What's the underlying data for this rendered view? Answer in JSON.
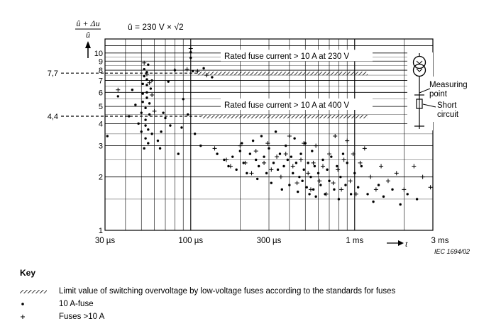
{
  "chart_data": {
    "type": "scatter",
    "x_scale": "log",
    "y_scale": "log",
    "xlim_us": [
      30,
      3000
    ],
    "ylim": [
      1,
      12
    ],
    "grid": true,
    "ylabel_num": "û + Δu",
    "ylabel_den": "û",
    "x_arrow_label": "t",
    "formula": "û = 230 V × √2",
    "x_tick_labels": [
      {
        "x_us": 30,
        "label": "30 µs"
      },
      {
        "x_us": 100,
        "label": "100 µs"
      },
      {
        "x_us": 300,
        "label": "300 µs"
      },
      {
        "x_us": 1000,
        "label": "1 ms"
      },
      {
        "x_us": 3000,
        "label": "3 ms"
      }
    ],
    "y_tick_labels": [
      {
        "y": 1,
        "label": "1"
      },
      {
        "y": 2,
        "label": "2"
      },
      {
        "y": 3,
        "label": "3"
      },
      {
        "y": 4,
        "label": "4"
      },
      {
        "y": 5,
        "label": "5"
      },
      {
        "y": 6,
        "label": "6"
      },
      {
        "y": 7,
        "label": "7"
      },
      {
        "y": 8,
        "label": "8"
      },
      {
        "y": 9,
        "label": "9"
      },
      {
        "y": 10,
        "label": "10"
      }
    ],
    "limit_lines": [
      {
        "y": 7.7,
        "label": "7,7",
        "x_start_us": 110,
        "x_end_us": 1200,
        "text": "Rated fuse current > 10 A at 230 V"
      },
      {
        "y": 4.4,
        "label": "4,4",
        "x_start_us": 115,
        "x_end_us": 1200,
        "text": "Rated fuse current > 10 A at 400 V"
      }
    ],
    "series": [
      {
        "name": "10 A-fuse",
        "marker": "dot",
        "points": [
          [
            31,
            3.4
          ],
          [
            36,
            5.7
          ],
          [
            42,
            4.4
          ],
          [
            44,
            6.2
          ],
          [
            46,
            5.1
          ],
          [
            48,
            4.0
          ],
          [
            50,
            3.6
          ],
          [
            50,
            4.6
          ],
          [
            51,
            5.3
          ],
          [
            51,
            5.9
          ],
          [
            51,
            6.7
          ],
          [
            52,
            7.4
          ],
          [
            52,
            8.1
          ],
          [
            52,
            2.9
          ],
          [
            53,
            3.3
          ],
          [
            53,
            3.9
          ],
          [
            53,
            4.2
          ],
          [
            53,
            4.9
          ],
          [
            54,
            5.6
          ],
          [
            54,
            6.0
          ],
          [
            54,
            6.6
          ],
          [
            54,
            7.1
          ],
          [
            54,
            7.8
          ],
          [
            55,
            8.6
          ],
          [
            55,
            3.1
          ],
          [
            55,
            3.7
          ],
          [
            56,
            4.5
          ],
          [
            56,
            5.2
          ],
          [
            57,
            6.3
          ],
          [
            58,
            7.0
          ],
          [
            58,
            3.5
          ],
          [
            63,
            3.2
          ],
          [
            65,
            2.9
          ],
          [
            66,
            3.6
          ],
          [
            68,
            4.6
          ],
          [
            70,
            4.3
          ],
          [
            73,
            6.9
          ],
          [
            75,
            3.9
          ],
          [
            80,
            8.0
          ],
          [
            84,
            2.7
          ],
          [
            88,
            3.8
          ],
          [
            90,
            5.5
          ],
          [
            96,
            4.5
          ],
          [
            100,
            10.1
          ],
          [
            100,
            9.4
          ],
          [
            103,
            7.9
          ],
          [
            106,
            3.5
          ],
          [
            115,
            3.0
          ],
          [
            120,
            8.2
          ],
          [
            135,
            7.3
          ],
          [
            145,
            2.7
          ],
          [
            160,
            2.5
          ],
          [
            170,
            2.3
          ],
          [
            180,
            2.6
          ],
          [
            190,
            2.2
          ],
          [
            200,
            2.8
          ],
          [
            205,
            3.1
          ],
          [
            210,
            2.4
          ],
          [
            220,
            2.1
          ],
          [
            230,
            2.7
          ],
          [
            240,
            3.2
          ],
          [
            250,
            2.5
          ],
          [
            255,
            1.95
          ],
          [
            260,
            2.3
          ],
          [
            270,
            3.4
          ],
          [
            280,
            2.6
          ],
          [
            290,
            2.1
          ],
          [
            300,
            2.9
          ],
          [
            310,
            1.85
          ],
          [
            320,
            2.4
          ],
          [
            330,
            3.6
          ],
          [
            340,
            2.2
          ],
          [
            350,
            2.7
          ],
          [
            360,
            1.7
          ],
          [
            370,
            2.3
          ],
          [
            380,
            3.0
          ],
          [
            390,
            2.5
          ],
          [
            400,
            1.8
          ],
          [
            410,
            2.6
          ],
          [
            420,
            2.1
          ],
          [
            430,
            3.3
          ],
          [
            440,
            2.4
          ],
          [
            450,
            1.65
          ],
          [
            460,
            2.0
          ],
          [
            470,
            2.7
          ],
          [
            480,
            1.9
          ],
          [
            490,
            2.2
          ],
          [
            500,
            3.1
          ],
          [
            510,
            1.75
          ],
          [
            520,
            2.4
          ],
          [
            530,
            1.6
          ],
          [
            540,
            2.0
          ],
          [
            550,
            2.8
          ],
          [
            560,
            1.7
          ],
          [
            570,
            2.3
          ],
          [
            580,
            1.55
          ],
          [
            600,
            2.1
          ],
          [
            620,
            1.8
          ],
          [
            640,
            2.5
          ],
          [
            660,
            1.6
          ],
          [
            680,
            2.2
          ],
          [
            700,
            1.9
          ],
          [
            720,
            2.6
          ],
          [
            750,
            1.7
          ],
          [
            780,
            2.3
          ],
          [
            800,
            1.5
          ],
          [
            820,
            2.0
          ],
          [
            850,
            2.7
          ],
          [
            880,
            1.8
          ],
          [
            900,
            2.4
          ],
          [
            950,
            1.6
          ],
          [
            1000,
            2.1
          ],
          [
            1050,
            1.75
          ],
          [
            1100,
            2.3
          ],
          [
            1200,
            1.6
          ],
          [
            1300,
            1.45
          ],
          [
            1400,
            1.8
          ],
          [
            1500,
            1.55
          ],
          [
            1700,
            1.7
          ],
          [
            1900,
            1.4
          ],
          [
            2100,
            1.6
          ],
          [
            2400,
            1.5
          ]
        ]
      },
      {
        "name": "Fuses >10 A",
        "marker": "plus",
        "points": [
          [
            36,
            6.2
          ],
          [
            52,
            8.8
          ],
          [
            54,
            7.6
          ],
          [
            56,
            6.8
          ],
          [
            58,
            5.8
          ],
          [
            60,
            4.7
          ],
          [
            80,
            8.0
          ],
          [
            95,
            8.1
          ],
          [
            100,
            10.6
          ],
          [
            110,
            7.9
          ],
          [
            125,
            7.5
          ],
          [
            140,
            2.9
          ],
          [
            165,
            2.5
          ],
          [
            175,
            2.3
          ],
          [
            200,
            3.0
          ],
          [
            215,
            2.4
          ],
          [
            235,
            2.1
          ],
          [
            250,
            2.8
          ],
          [
            280,
            2.4
          ],
          [
            295,
            3.1
          ],
          [
            310,
            2.2
          ],
          [
            335,
            2.6
          ],
          [
            355,
            2.0
          ],
          [
            380,
            2.7
          ],
          [
            400,
            3.4
          ],
          [
            420,
            2.3
          ],
          [
            445,
            1.85
          ],
          [
            470,
            2.5
          ],
          [
            490,
            3.1
          ],
          [
            520,
            2.1
          ],
          [
            540,
            1.7
          ],
          [
            560,
            2.4
          ],
          [
            580,
            3.0
          ],
          [
            610,
            1.9
          ],
          [
            640,
            2.3
          ],
          [
            670,
            1.6
          ],
          [
            700,
            2.7
          ],
          [
            740,
            1.85
          ],
          [
            760,
            3.4
          ],
          [
            790,
            2.2
          ],
          [
            830,
            1.7
          ],
          [
            860,
            2.5
          ],
          [
            900,
            3.2
          ],
          [
            940,
            1.9
          ],
          [
            980,
            2.7
          ],
          [
            1020,
            1.6
          ],
          [
            1080,
            2.4
          ],
          [
            1150,
            2.9
          ],
          [
            1250,
            2.0
          ],
          [
            1350,
            1.7
          ],
          [
            1450,
            2.3
          ],
          [
            1600,
            1.9
          ],
          [
            1800,
            2.1
          ],
          [
            2000,
            1.7
          ],
          [
            2300,
            2.3
          ],
          [
            2600,
            2.0
          ],
          [
            2900,
            1.75
          ]
        ]
      }
    ]
  },
  "inset": {
    "measuring_point": [
      "Measuring",
      "point"
    ],
    "short_circuit": [
      "Short",
      "circuit"
    ]
  },
  "watermark": "IEC  1694/02",
  "key": {
    "title": "Key",
    "items": [
      {
        "symbol": "hatched-line",
        "text": "Limit value of switching overvoltage by low-voltage fuses according to the standards for fuses"
      },
      {
        "symbol": "dot",
        "text": "10 A-fuse"
      },
      {
        "symbol": "plus",
        "text": "Fuses >10 A"
      }
    ]
  }
}
